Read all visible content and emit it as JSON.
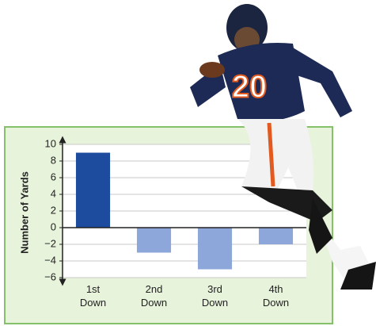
{
  "chart_data": {
    "type": "bar",
    "y_label": "Number of Yards",
    "categories": [
      "1st Down",
      "2nd Down",
      "3rd Down",
      "4th Down"
    ],
    "values": [
      9,
      -3,
      -5,
      -2
    ],
    "colors": [
      "#1d4c9e",
      "#8ea7da",
      "#8ea7da",
      "#8ea7da"
    ],
    "ylim": [
      -6,
      10
    ],
    "yticks": [
      {
        "value": -6,
        "label": "−6"
      },
      {
        "value": -4,
        "label": "−4"
      },
      {
        "value": -2,
        "label": "−2"
      },
      0,
      2,
      4,
      6,
      8,
      10
    ],
    "grid": true
  },
  "player_number": "20"
}
